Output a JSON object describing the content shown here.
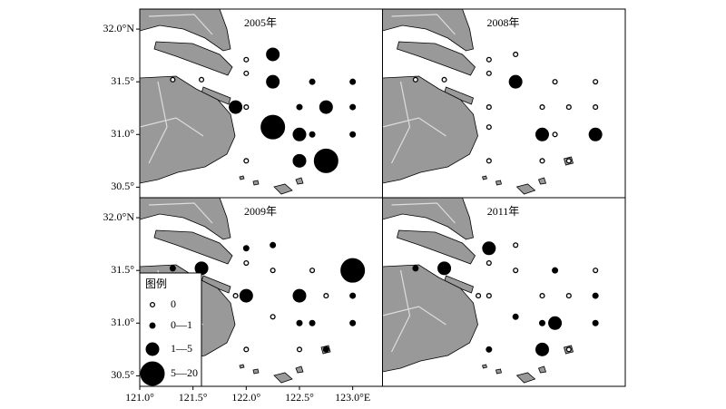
{
  "map": {
    "lon_range": [
      121.0,
      123.28
    ],
    "lat_range": [
      30.4,
      32.19
    ],
    "lon_ticks": [
      {
        "value": 121.0,
        "label": "121.0°"
      },
      {
        "value": 121.5,
        "label": "121.5°"
      },
      {
        "value": 122.0,
        "label": "122.0°"
      },
      {
        "value": 122.5,
        "label": "122.5°"
      },
      {
        "value": 123.0,
        "label": "123.0°E"
      }
    ],
    "lat_ticks": [
      {
        "value": 32.0,
        "label": "32.0°N"
      },
      {
        "value": 31.5,
        "label": "31.5°"
      },
      {
        "value": 31.0,
        "label": "31.0°"
      },
      {
        "value": 30.5,
        "label": "30.5°"
      }
    ],
    "legend": {
      "title": "图例",
      "items": [
        "0",
        "0—1",
        "1—5",
        "5—20"
      ]
    },
    "panels": [
      {
        "title": "2005年",
        "points": [
          {
            "lon": 122.0,
            "lat": 31.71,
            "class": "0"
          },
          {
            "lon": 122.0,
            "lat": 31.58,
            "class": "0"
          },
          {
            "lon": 122.25,
            "lat": 31.76,
            "class": "1—5"
          },
          {
            "lon": 122.25,
            "lat": 31.5,
            "class": "1—5"
          },
          {
            "lon": 122.62,
            "lat": 31.5,
            "class": "0—1"
          },
          {
            "lon": 123.0,
            "lat": 31.5,
            "class": "0—1"
          },
          {
            "lon": 121.31,
            "lat": 31.52,
            "class": "0"
          },
          {
            "lon": 121.58,
            "lat": 31.52,
            "class": "0"
          },
          {
            "lon": 121.9,
            "lat": 31.26,
            "class": "1—5"
          },
          {
            "lon": 122.0,
            "lat": 31.26,
            "class": "0"
          },
          {
            "lon": 122.5,
            "lat": 31.26,
            "class": "0—1"
          },
          {
            "lon": 122.75,
            "lat": 31.26,
            "class": "1—5"
          },
          {
            "lon": 123.0,
            "lat": 31.26,
            "class": "0—1"
          },
          {
            "lon": 122.25,
            "lat": 31.07,
            "class": "5—20"
          },
          {
            "lon": 122.5,
            "lat": 31.0,
            "class": "1—5"
          },
          {
            "lon": 122.62,
            "lat": 31.0,
            "class": "0—1"
          },
          {
            "lon": 123.0,
            "lat": 31.0,
            "class": "0—1"
          },
          {
            "lon": 122.0,
            "lat": 30.75,
            "class": "0"
          },
          {
            "lon": 122.5,
            "lat": 30.75,
            "class": "1—5"
          },
          {
            "lon": 122.75,
            "lat": 30.75,
            "class": "5—20"
          }
        ]
      },
      {
        "title": "2008年",
        "points": [
          {
            "lon": 122.0,
            "lat": 31.71,
            "class": "0"
          },
          {
            "lon": 122.0,
            "lat": 31.58,
            "class": "0"
          },
          {
            "lon": 122.25,
            "lat": 31.76,
            "class": "0"
          },
          {
            "lon": 122.25,
            "lat": 31.5,
            "class": "1—5"
          },
          {
            "lon": 122.62,
            "lat": 31.5,
            "class": "0"
          },
          {
            "lon": 123.0,
            "lat": 31.5,
            "class": "0"
          },
          {
            "lon": 121.31,
            "lat": 31.52,
            "class": "0"
          },
          {
            "lon": 121.58,
            "lat": 31.52,
            "class": "0"
          },
          {
            "lon": 122.0,
            "lat": 31.26,
            "class": "0"
          },
          {
            "lon": 122.5,
            "lat": 31.26,
            "class": "0"
          },
          {
            "lon": 122.75,
            "lat": 31.26,
            "class": "0"
          },
          {
            "lon": 123.0,
            "lat": 31.26,
            "class": "0"
          },
          {
            "lon": 122.0,
            "lat": 31.07,
            "class": "0"
          },
          {
            "lon": 122.5,
            "lat": 31.0,
            "class": "1—5"
          },
          {
            "lon": 122.62,
            "lat": 31.0,
            "class": "0"
          },
          {
            "lon": 123.0,
            "lat": 31.0,
            "class": "1—5"
          },
          {
            "lon": 122.0,
            "lat": 30.75,
            "class": "0"
          },
          {
            "lon": 122.5,
            "lat": 30.75,
            "class": "0"
          },
          {
            "lon": 122.75,
            "lat": 30.75,
            "class": "0"
          }
        ]
      },
      {
        "title": "2009年",
        "points": [
          {
            "lon": 122.0,
            "lat": 31.71,
            "class": "0—1"
          },
          {
            "lon": 122.0,
            "lat": 31.57,
            "class": "0"
          },
          {
            "lon": 122.25,
            "lat": 31.74,
            "class": "0—1"
          },
          {
            "lon": 122.25,
            "lat": 31.5,
            "class": "0"
          },
          {
            "lon": 122.62,
            "lat": 31.5,
            "class": "0"
          },
          {
            "lon": 123.0,
            "lat": 31.5,
            "class": "5—20"
          },
          {
            "lon": 121.31,
            "lat": 31.52,
            "class": "0—1"
          },
          {
            "lon": 121.58,
            "lat": 31.52,
            "class": "1—5"
          },
          {
            "lon": 121.9,
            "lat": 31.26,
            "class": "0"
          },
          {
            "lon": 122.0,
            "lat": 31.26,
            "class": "1—5"
          },
          {
            "lon": 122.5,
            "lat": 31.26,
            "class": "1—5"
          },
          {
            "lon": 122.75,
            "lat": 31.26,
            "class": "0"
          },
          {
            "lon": 123.0,
            "lat": 31.26,
            "class": "0—1"
          },
          {
            "lon": 122.25,
            "lat": 31.06,
            "class": "0"
          },
          {
            "lon": 122.5,
            "lat": 31.0,
            "class": "0—1"
          },
          {
            "lon": 122.62,
            "lat": 31.0,
            "class": "0—1"
          },
          {
            "lon": 123.0,
            "lat": 31.0,
            "class": "0—1"
          },
          {
            "lon": 122.0,
            "lat": 30.75,
            "class": "0"
          },
          {
            "lon": 122.5,
            "lat": 30.75,
            "class": "0"
          },
          {
            "lon": 122.75,
            "lat": 30.75,
            "class": "0—1"
          }
        ]
      },
      {
        "title": "2011年",
        "points": [
          {
            "lon": 122.0,
            "lat": 31.71,
            "class": "1—5"
          },
          {
            "lon": 122.0,
            "lat": 31.57,
            "class": "0"
          },
          {
            "lon": 122.25,
            "lat": 31.74,
            "class": "0"
          },
          {
            "lon": 122.25,
            "lat": 31.5,
            "class": "0"
          },
          {
            "lon": 122.62,
            "lat": 31.5,
            "class": "0—1"
          },
          {
            "lon": 123.0,
            "lat": 31.5,
            "class": "0"
          },
          {
            "lon": 121.31,
            "lat": 31.52,
            "class": "0—1"
          },
          {
            "lon": 121.58,
            "lat": 31.52,
            "class": "1—5"
          },
          {
            "lon": 121.9,
            "lat": 31.26,
            "class": "0"
          },
          {
            "lon": 122.0,
            "lat": 31.26,
            "class": "0"
          },
          {
            "lon": 122.5,
            "lat": 31.26,
            "class": "0"
          },
          {
            "lon": 122.75,
            "lat": 31.26,
            "class": "0"
          },
          {
            "lon": 123.0,
            "lat": 31.26,
            "class": "0—1"
          },
          {
            "lon": 122.25,
            "lat": 31.06,
            "class": "0—1"
          },
          {
            "lon": 122.5,
            "lat": 31.0,
            "class": "0—1"
          },
          {
            "lon": 122.62,
            "lat": 31.0,
            "class": "1—5"
          },
          {
            "lon": 123.0,
            "lat": 31.0,
            "class": "0—1"
          },
          {
            "lon": 122.0,
            "lat": 30.75,
            "class": "0—1"
          },
          {
            "lon": 122.5,
            "lat": 30.75,
            "class": "1—5"
          },
          {
            "lon": 122.75,
            "lat": 30.75,
            "class": "0"
          }
        ]
      }
    ]
  }
}
